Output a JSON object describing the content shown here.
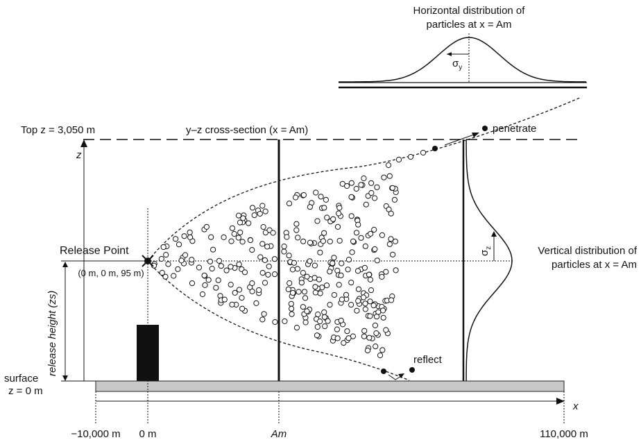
{
  "horizontal_distribution": {
    "title_line1": "Horizontal distribution of",
    "title_line2": "particles at x = Am",
    "sigma": "σ",
    "sigma_sub": "y"
  },
  "top_label": "Top z = 3,050 m",
  "cross_section_label": "y–z cross-section (x = Am)",
  "penetrate_label": "penetrate",
  "z_axis_label": "z",
  "release_point": {
    "label": "Release Point",
    "coords": "(0 m, 0 m, 95 m)"
  },
  "release_height_label": "release height (zs)",
  "vertical_distribution": {
    "title_line1": "Vertical distribution of",
    "title_line2": "particles at x = Am",
    "sigma": "σ",
    "sigma_sub": "z"
  },
  "reflect_label": "reflect",
  "surface_label_line1": "surface",
  "surface_label_line2": "z = 0 m",
  "x_axis_label": "x",
  "x_ticks": [
    "−10,000 m",
    "0 m",
    "Am",
    "110,000 m"
  ]
}
